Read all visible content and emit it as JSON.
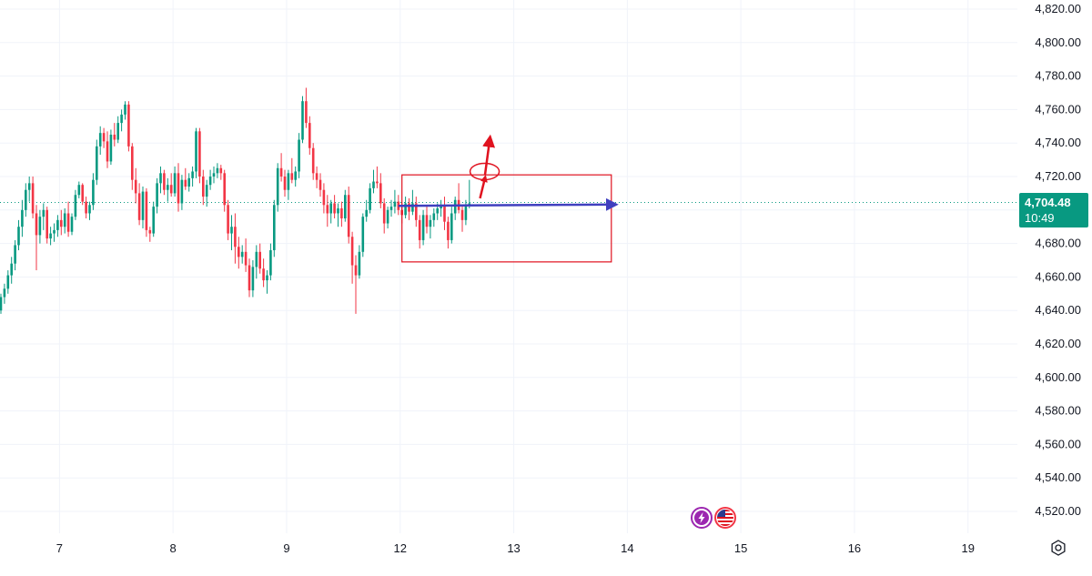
{
  "colors": {
    "up": "#089981",
    "down": "#f23645",
    "grid": "#f0f3fa",
    "last_price_line": "#089981",
    "annotation_red": "#e0121f",
    "annotation_blue": "#3f3fbf",
    "event_purple": "#9c27b0",
    "event_flag": "#f23645"
  },
  "price_tag": {
    "price": "4,704.48",
    "countdown": "10:49"
  },
  "icons": {
    "settings": "settings-gear-icon",
    "event_1": "lightning-icon",
    "event_2": "us-flag-icon"
  },
  "chart_data": {
    "type": "candlestick",
    "ylim": [
      4510,
      4830
    ],
    "y_ticks": [
      "4,820.00",
      "4,800.00",
      "4,780.00",
      "4,760.00",
      "4,740.00",
      "4,720.00",
      "4,700.00",
      "4,680.00",
      "4,660.00",
      "4,640.00",
      "4,620.00",
      "4,600.00",
      "4,580.00",
      "4,560.00",
      "4,540.00",
      "4,520.00"
    ],
    "y_tick_values": [
      4820,
      4800,
      4780,
      4760,
      4740,
      4720,
      4700,
      4680,
      4660,
      4640,
      4620,
      4600,
      4580,
      4560,
      4540,
      4520
    ],
    "x_ticks": [
      "7",
      "8",
      "9",
      "12",
      "13",
      "14",
      "15",
      "16",
      "19"
    ],
    "x_tick_index": [
      16.5,
      48.5,
      80.5,
      112.5,
      144.5,
      176.5,
      208.5,
      240.5,
      272.5
    ],
    "last_price": 4704.48,
    "grid": true,
    "ohlc": [
      [
        4640,
        4650,
        4638,
        4648
      ],
      [
        4648,
        4656,
        4644,
        4653
      ],
      [
        4653,
        4664,
        4650,
        4661
      ],
      [
        4661,
        4672,
        4656,
        4668
      ],
      [
        4668,
        4682,
        4664,
        4679
      ],
      [
        4679,
        4694,
        4676,
        4690
      ],
      [
        4690,
        4706,
        4684,
        4700
      ],
      [
        4700,
        4716,
        4696,
        4712
      ],
      [
        4712,
        4720,
        4705,
        4716
      ],
      [
        4716,
        4720,
        4695,
        4698
      ],
      [
        4698,
        4703,
        4664,
        4685
      ],
      [
        4685,
        4700,
        4680,
        4696
      ],
      [
        4696,
        4704,
        4688,
        4700
      ],
      [
        4700,
        4702,
        4680,
        4683
      ],
      [
        4683,
        4690,
        4679,
        4686
      ],
      [
        4686,
        4692,
        4681,
        4688
      ],
      [
        4688,
        4697,
        4684,
        4694
      ],
      [
        4694,
        4700,
        4685,
        4690
      ],
      [
        4690,
        4701,
        4686,
        4698
      ],
      [
        4698,
        4705,
        4684,
        4687
      ],
      [
        4687,
        4698,
        4685,
        4696
      ],
      [
        4696,
        4712,
        4694,
        4709
      ],
      [
        4709,
        4717,
        4707,
        4715
      ],
      [
        4715,
        4716,
        4703,
        4705
      ],
      [
        4705,
        4708,
        4695,
        4698
      ],
      [
        4698,
        4705,
        4694,
        4703
      ],
      [
        4703,
        4722,
        4700,
        4718
      ],
      [
        4718,
        4742,
        4715,
        4738
      ],
      [
        4738,
        4750,
        4733,
        4746
      ],
      [
        4746,
        4749,
        4737,
        4741
      ],
      [
        4741,
        4747,
        4725,
        4729
      ],
      [
        4729,
        4748,
        4727,
        4745
      ],
      [
        4745,
        4752,
        4738,
        4742
      ],
      [
        4742,
        4756,
        4740,
        4752
      ],
      [
        4752,
        4760,
        4747,
        4757
      ],
      [
        4757,
        4765,
        4754,
        4763
      ],
      [
        4763,
        4765,
        4735,
        4738
      ],
      [
        4738,
        4740,
        4712,
        4718
      ],
      [
        4718,
        4725,
        4704,
        4710
      ],
      [
        4710,
        4716,
        4691,
        4694
      ],
      [
        4694,
        4714,
        4689,
        4711
      ],
      [
        4711,
        4713,
        4684,
        4688
      ],
      [
        4688,
        4690,
        4681,
        4686
      ],
      [
        4686,
        4705,
        4684,
        4702
      ],
      [
        4702,
        4719,
        4698,
        4716
      ],
      [
        4716,
        4726,
        4710,
        4722
      ],
      [
        4722,
        4724,
        4709,
        4712
      ],
      [
        4712,
        4719,
        4705,
        4715
      ],
      [
        4715,
        4722,
        4708,
        4710
      ],
      [
        4710,
        4726,
        4708,
        4722
      ],
      [
        4722,
        4728,
        4699,
        4704
      ],
      [
        4704,
        4721,
        4700,
        4718
      ],
      [
        4718,
        4725,
        4712,
        4714
      ],
      [
        4714,
        4722,
        4711,
        4719
      ],
      [
        4719,
        4726,
        4714,
        4723
      ],
      [
        4723,
        4749,
        4719,
        4747
      ],
      [
        4747,
        4749,
        4716,
        4720
      ],
      [
        4720,
        4724,
        4703,
        4708
      ],
      [
        4708,
        4718,
        4702,
        4715
      ],
      [
        4715,
        4724,
        4712,
        4720
      ],
      [
        4720,
        4726,
        4716,
        4722
      ],
      [
        4722,
        4728,
        4719,
        4725
      ],
      [
        4725,
        4727,
        4718,
        4722
      ],
      [
        4722,
        4724,
        4699,
        4703
      ],
      [
        4703,
        4706,
        4682,
        4686
      ],
      [
        4686,
        4697,
        4676,
        4690
      ],
      [
        4690,
        4698,
        4668,
        4678
      ],
      [
        4678,
        4684,
        4665,
        4672
      ],
      [
        4672,
        4679,
        4668,
        4675
      ],
      [
        4675,
        4683,
        4663,
        4667
      ],
      [
        4667,
        4671,
        4648,
        4652
      ],
      [
        4652,
        4670,
        4648,
        4666
      ],
      [
        4666,
        4679,
        4659,
        4675
      ],
      [
        4675,
        4680,
        4662,
        4665
      ],
      [
        4665,
        4671,
        4654,
        4658
      ],
      [
        4658,
        4664,
        4650,
        4661
      ],
      [
        4661,
        4680,
        4658,
        4676
      ],
      [
        4676,
        4706,
        4672,
        4703
      ],
      [
        4703,
        4728,
        4699,
        4725
      ],
      [
        4725,
        4734,
        4717,
        4720
      ],
      [
        4720,
        4724,
        4708,
        4712
      ],
      [
        4712,
        4724,
        4706,
        4722
      ],
      [
        4722,
        4731,
        4716,
        4718
      ],
      [
        4718,
        4726,
        4714,
        4723
      ],
      [
        4723,
        4746,
        4719,
        4742
      ],
      [
        4742,
        4768,
        4740,
        4765
      ],
      [
        4765,
        4773,
        4749,
        4752
      ],
      [
        4752,
        4756,
        4733,
        4737
      ],
      [
        4737,
        4740,
        4718,
        4722
      ],
      [
        4722,
        4726,
        4713,
        4718
      ],
      [
        4718,
        4722,
        4708,
        4712
      ],
      [
        4712,
        4716,
        4698,
        4703
      ],
      [
        4703,
        4709,
        4690,
        4698
      ],
      [
        4698,
        4706,
        4692,
        4704
      ],
      [
        4704,
        4709,
        4695,
        4698
      ],
      [
        4698,
        4704,
        4690,
        4701
      ],
      [
        4701,
        4705,
        4690,
        4695
      ],
      [
        4695,
        4712,
        4693,
        4709
      ],
      [
        4709,
        4714,
        4680,
        4684
      ],
      [
        4684,
        4687,
        4656,
        4667
      ],
      [
        4667,
        4673,
        4638,
        4661
      ],
      [
        4661,
        4679,
        4659,
        4675
      ],
      [
        4675,
        4698,
        4672,
        4696
      ],
      [
        4696,
        4706,
        4693,
        4700
      ],
      [
        4700,
        4716,
        4698,
        4713
      ],
      [
        4713,
        4724,
        4710,
        4717
      ],
      [
        4717,
        4726,
        4713,
        4716
      ],
      [
        4716,
        4722,
        4701,
        4704
      ],
      [
        4704,
        4707,
        4686,
        4692
      ],
      [
        4692,
        4702,
        4689,
        4700
      ],
      [
        4700,
        4706,
        4696,
        4702
      ],
      [
        4702,
        4712,
        4698,
        4705
      ],
      [
        4705,
        4709,
        4697,
        4700
      ],
      [
        4700,
        4704,
        4692,
        4697
      ],
      [
        4697,
        4708,
        4695,
        4704
      ],
      [
        4704,
        4707,
        4694,
        4699
      ],
      [
        4699,
        4712,
        4697,
        4704
      ],
      [
        4704,
        4708,
        4690,
        4694
      ],
      [
        4694,
        4697,
        4677,
        4682
      ],
      [
        4682,
        4700,
        4679,
        4697
      ],
      [
        4697,
        4703,
        4686,
        4690
      ],
      [
        4690,
        4697,
        4683,
        4694
      ],
      [
        4694,
        4701,
        4690,
        4698
      ],
      [
        4698,
        4704,
        4694,
        4701
      ],
      [
        4701,
        4706,
        4696,
        4703
      ],
      [
        4703,
        4708,
        4688,
        4693
      ],
      [
        4693,
        4696,
        4677,
        4682
      ],
      [
        4682,
        4702,
        4680,
        4698
      ],
      [
        4698,
        4708,
        4694,
        4706
      ],
      [
        4706,
        4716,
        4698,
        4700
      ],
      [
        4700,
        4703,
        4687,
        4694
      ],
      [
        4694,
        4706,
        4691,
        4703
      ],
      [
        4703,
        4718,
        4701,
        4704
      ]
    ]
  },
  "annotations": {
    "range_box": {
      "x_from": 113,
      "x_to": 172,
      "y_top": 4721,
      "y_bottom": 4669
    },
    "blue_arrow": {
      "x_from": 112,
      "x_to": 172,
      "y_from": 4702.5,
      "y_to": 4703.3
    },
    "breakout_circle": {
      "x": 136.3,
      "y": 4723
    },
    "red_arrow_1": {
      "x_from": 135,
      "y_from": 4707,
      "x_to": 136.5,
      "y_to": 4720
    },
    "red_arrow_2": {
      "x_from": 136.4,
      "y_from": 4721,
      "x_to": 137.8,
      "y_to": 4743
    }
  }
}
